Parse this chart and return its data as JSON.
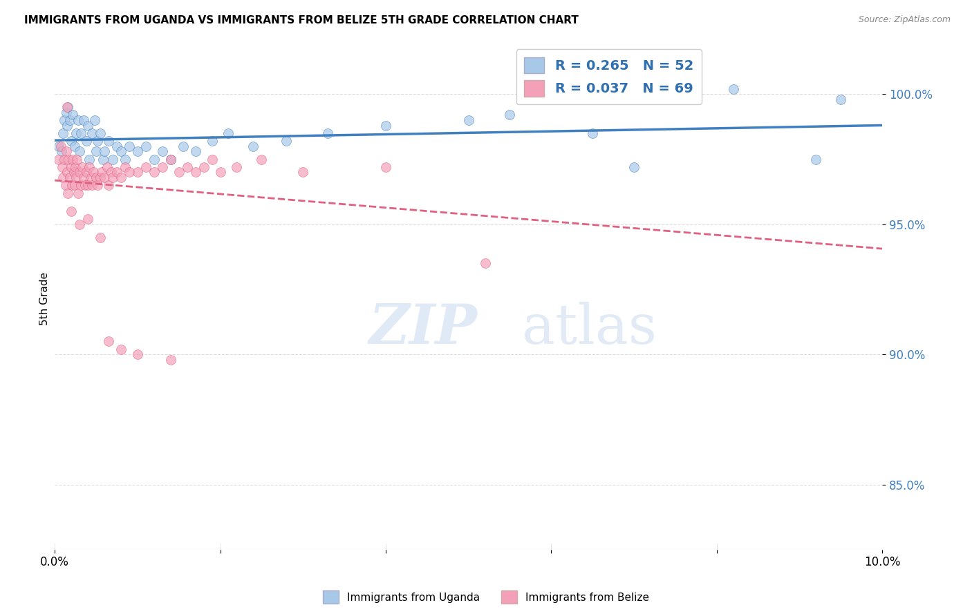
{
  "title": "IMMIGRANTS FROM UGANDA VS IMMIGRANTS FROM BELIZE 5TH GRADE CORRELATION CHART",
  "source": "Source: ZipAtlas.com",
  "ylabel": "5th Grade",
  "y_ticks": [
    85.0,
    90.0,
    95.0,
    100.0
  ],
  "y_tick_labels": [
    "85.0%",
    "90.0%",
    "95.0%",
    "100.0%"
  ],
  "xlim": [
    0.0,
    10.0
  ],
  "ylim": [
    82.5,
    101.8
  ],
  "legend1_R": "0.265",
  "legend1_N": "52",
  "legend2_R": "0.037",
  "legend2_N": "69",
  "color_uganda": "#a8c8e8",
  "color_belize": "#f4a0b8",
  "color_uganda_line": "#4080c0",
  "color_belize_line": "#e06080",
  "uganda_x": [
    0.05,
    0.08,
    0.1,
    0.12,
    0.14,
    0.15,
    0.16,
    0.18,
    0.2,
    0.22,
    0.24,
    0.26,
    0.28,
    0.3,
    0.32,
    0.35,
    0.38,
    0.4,
    0.42,
    0.45,
    0.48,
    0.5,
    0.52,
    0.55,
    0.58,
    0.6,
    0.65,
    0.7,
    0.75,
    0.8,
    0.85,
    0.9,
    1.0,
    1.1,
    1.2,
    1.3,
    1.4,
    1.55,
    1.7,
    1.9,
    2.1,
    2.4,
    2.8,
    3.3,
    4.0,
    5.0,
    5.5,
    6.5,
    7.0,
    8.2,
    9.2,
    9.5
  ],
  "uganda_y": [
    98.0,
    97.8,
    98.5,
    99.0,
    99.3,
    98.8,
    99.5,
    99.0,
    98.2,
    99.2,
    98.0,
    98.5,
    99.0,
    97.8,
    98.5,
    99.0,
    98.2,
    98.8,
    97.5,
    98.5,
    99.0,
    97.8,
    98.2,
    98.5,
    97.5,
    97.8,
    98.2,
    97.5,
    98.0,
    97.8,
    97.5,
    98.0,
    97.8,
    98.0,
    97.5,
    97.8,
    97.5,
    98.0,
    97.8,
    98.2,
    98.5,
    98.0,
    98.2,
    98.5,
    98.8,
    99.0,
    99.2,
    98.5,
    97.2,
    100.2,
    97.5,
    99.8
  ],
  "belize_x": [
    0.05,
    0.07,
    0.09,
    0.1,
    0.12,
    0.13,
    0.14,
    0.15,
    0.16,
    0.17,
    0.18,
    0.2,
    0.21,
    0.22,
    0.23,
    0.24,
    0.25,
    0.26,
    0.27,
    0.28,
    0.3,
    0.32,
    0.33,
    0.35,
    0.37,
    0.38,
    0.4,
    0.42,
    0.44,
    0.45,
    0.47,
    0.5,
    0.52,
    0.55,
    0.57,
    0.6,
    0.63,
    0.65,
    0.68,
    0.7,
    0.75,
    0.8,
    0.85,
    0.9,
    1.0,
    1.1,
    1.2,
    1.3,
    1.4,
    1.5,
    1.6,
    1.7,
    1.8,
    1.9,
    2.0,
    2.2,
    2.5,
    3.0,
    4.0,
    5.2,
    0.15,
    0.2,
    0.3,
    0.4,
    0.55,
    0.65,
    0.8,
    1.0,
    1.4
  ],
  "belize_y": [
    97.5,
    98.0,
    97.2,
    96.8,
    97.5,
    96.5,
    97.8,
    97.0,
    96.2,
    97.5,
    96.8,
    97.2,
    96.5,
    97.5,
    97.0,
    96.5,
    97.2,
    96.8,
    97.5,
    96.2,
    97.0,
    96.5,
    97.2,
    96.8,
    96.5,
    97.0,
    96.5,
    97.2,
    96.8,
    96.5,
    97.0,
    96.8,
    96.5,
    96.8,
    97.0,
    96.8,
    97.2,
    96.5,
    97.0,
    96.8,
    97.0,
    96.8,
    97.2,
    97.0,
    97.0,
    97.2,
    97.0,
    97.2,
    97.5,
    97.0,
    97.2,
    97.0,
    97.2,
    97.5,
    97.0,
    97.2,
    97.5,
    97.0,
    97.2,
    93.5,
    99.5,
    95.5,
    95.0,
    95.2,
    94.5,
    90.5,
    90.2,
    90.0,
    89.8
  ],
  "background_color": "#ffffff",
  "grid_color": "#dddddd"
}
